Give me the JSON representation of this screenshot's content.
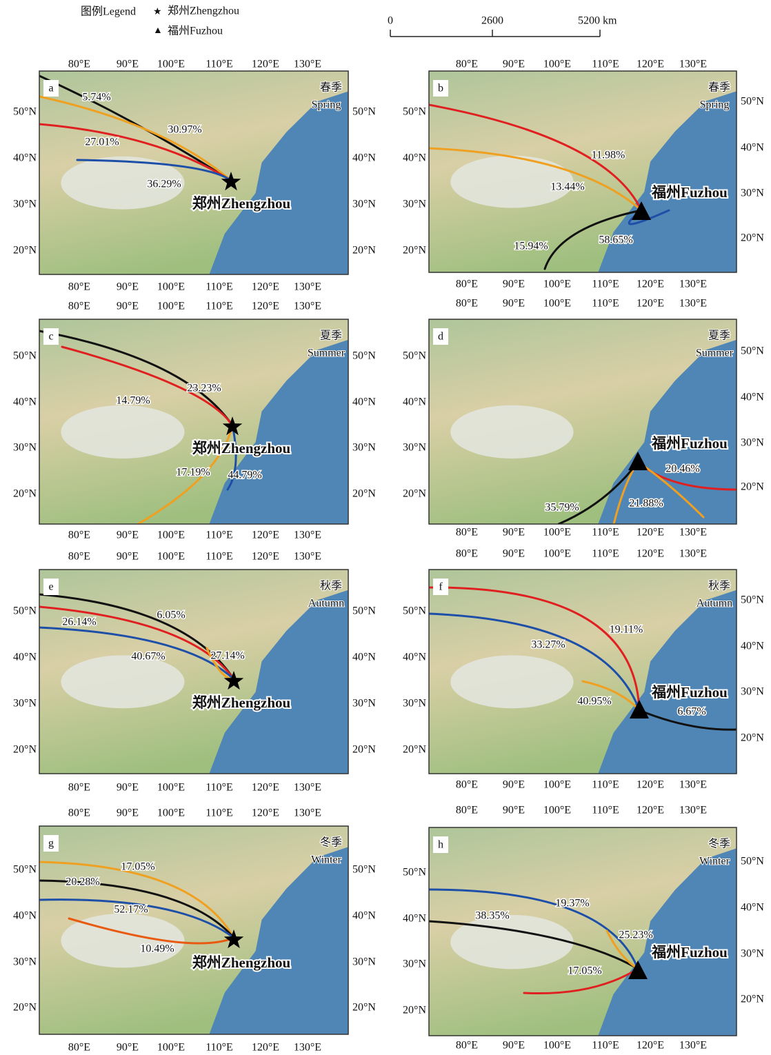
{
  "legend": {
    "title": "图例Legend",
    "items": [
      {
        "symbol": "★",
        "label": "郑州Zhengzhou"
      },
      {
        "symbol": "▲",
        "label": "福州Fuzhou"
      }
    ]
  },
  "scale_bar": {
    "labels": [
      "0",
      "2600",
      "5200 km"
    ]
  },
  "axes": {
    "lon": [
      "80°E",
      "90°E",
      "100°E",
      "110°E",
      "120°E",
      "130°E"
    ],
    "lat": [
      "50°N",
      "40°N",
      "30°N",
      "20°N"
    ]
  },
  "panels": [
    {
      "letter": "a",
      "season_cn": "春季",
      "season_en": "Spring",
      "city": "郑州Zhengzhou",
      "labels": [
        "5.74%",
        "30.97%",
        "27.01%",
        "36.29%"
      ]
    },
    {
      "letter": "b",
      "season_cn": "春季",
      "season_en": "Spring",
      "city": "福州Fuzhou",
      "labels": [
        "11.98%",
        "13.44%",
        "15.94%",
        "58.65%"
      ]
    },
    {
      "letter": "c",
      "season_cn": "夏季",
      "season_en": "Summer",
      "city": "郑州Zhengzhou",
      "labels": [
        "23.23%",
        "14.79%",
        "17.19%",
        "44.79%"
      ]
    },
    {
      "letter": "d",
      "season_cn": "夏季",
      "season_en": "Summer",
      "city": "福州Fuzhou",
      "labels": [
        "20.46%",
        "21.88%",
        "35.79%"
      ]
    },
    {
      "letter": "e",
      "season_cn": "秋季",
      "season_en": "Autumn",
      "city": "郑州Zhengzhou",
      "labels": [
        "6.05%",
        "26.14%",
        "27.14%",
        "40.67%"
      ]
    },
    {
      "letter": "f",
      "season_cn": "秋季",
      "season_en": "Autumn",
      "city": "福州Fuzhou",
      "labels": [
        "19.11%",
        "33.27%",
        "40.95%",
        "6.67%"
      ]
    },
    {
      "letter": "g",
      "season_cn": "冬季",
      "season_en": "Winter",
      "city": "郑州Zhengzhou",
      "labels": [
        "17.05%",
        "20.28%",
        "52.17%",
        "10.49%"
      ]
    },
    {
      "letter": "h",
      "season_cn": "冬季",
      "season_en": "Winter",
      "city": "福州Fuzhou",
      "labels": [
        "19.37%",
        "38.35%",
        "25.23%",
        "17.05%"
      ]
    }
  ]
}
